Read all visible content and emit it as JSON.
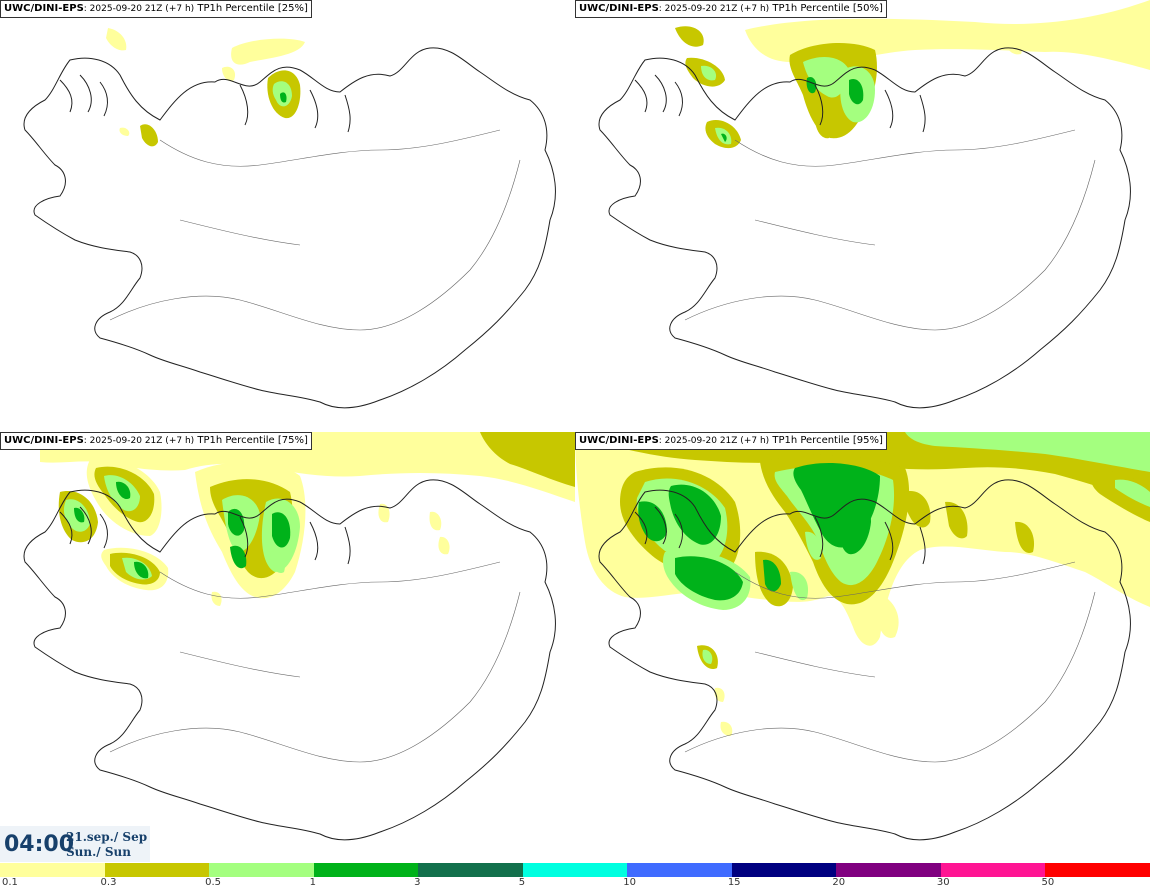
{
  "panels": [
    {
      "source": "UWC/DINI-EPS",
      "run": ": 2025-09-20 21Z (+7 h)",
      "label": " TP1h Percentile [25%]"
    },
    {
      "source": "UWC/DINI-EPS",
      "run": ": 2025-09-20 21Z (+7 h)",
      "label": " TP1h Percentile [50%]"
    },
    {
      "source": "UWC/DINI-EPS",
      "run": ": 2025-09-20 21Z (+7 h)",
      "label": " TP1h Percentile [75%]"
    },
    {
      "source": "UWC/DINI-EPS",
      "run": ": 2025-09-20 21Z (+7 h)",
      "label": " TP1h Percentile [95%]"
    }
  ],
  "time": {
    "clock": "04:00",
    "date": "21.sep./ Sep",
    "day": "Sun./ Sun"
  },
  "legend": {
    "colors": [
      "#ffff9c",
      "#c7c700",
      "#a4ff7f",
      "#00b21a",
      "#12704c",
      "#00ffe0",
      "#3f6bff",
      "#000080",
      "#800080",
      "#ff1493",
      "#ff0000"
    ],
    "ticks": [
      "0.1",
      "0.3",
      "0.5",
      "1",
      "3",
      "5",
      "10",
      "15",
      "20",
      "30",
      "50"
    ]
  },
  "map_colors": {
    "light": "#ffff9c",
    "medium": "#c7c700",
    "pale_green": "#a4ff7f",
    "green": "#00b21a",
    "coast": "#222222"
  }
}
